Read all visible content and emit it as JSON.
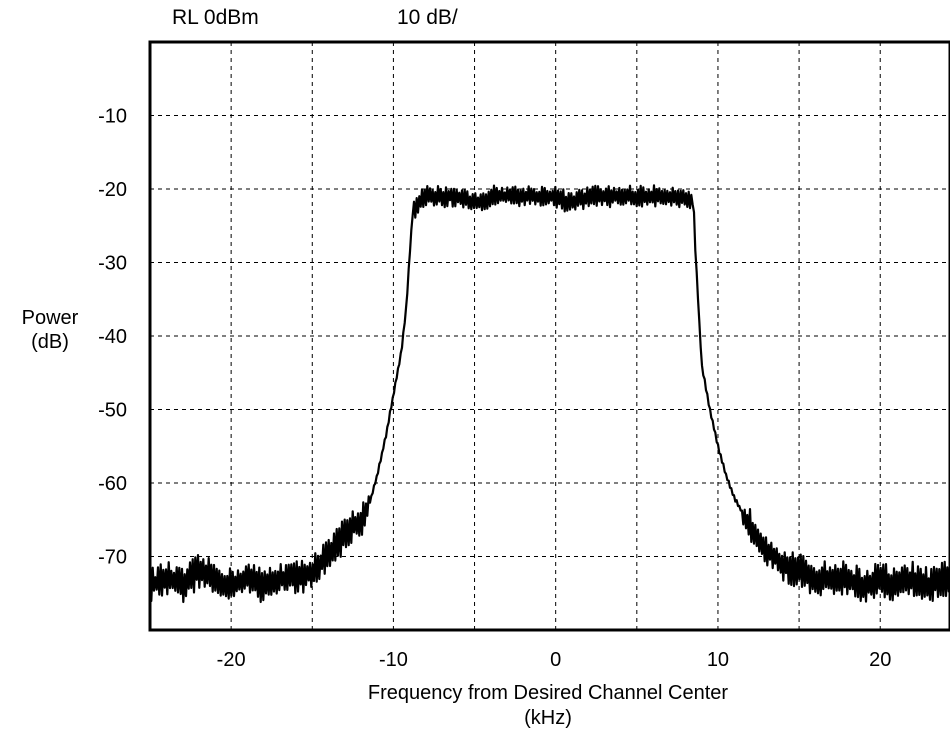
{
  "header": {
    "ref_level": "RL  0dBm",
    "scale": "10 dB/"
  },
  "chart_data": {
    "type": "line",
    "title": "",
    "xlabel_lines": [
      "Frequency from Desired Channel Center",
      "(kHz)"
    ],
    "ylabel_lines": [
      "Power",
      "(dB)"
    ],
    "xlim": [
      -25,
      24.3
    ],
    "ylim": [
      -80,
      0
    ],
    "grid": true,
    "x_ticks": [
      -20,
      -10,
      0,
      10,
      20
    ],
    "x_tick_labels": [
      "-20",
      "-10",
      "0",
      "10",
      "20"
    ],
    "x_grid_step": 5,
    "y_ticks": [
      -10,
      -20,
      -30,
      -40,
      -50,
      -60,
      -70
    ],
    "y_tick_labels": [
      "-10",
      "-20",
      "-30",
      "-40",
      "-50",
      "-60",
      "-70"
    ],
    "series": [
      {
        "color": "#000000",
        "x": [
          -25,
          -24,
          -23,
          -22,
          -21,
          -20,
          -19,
          -18,
          -17,
          -16,
          -15,
          -14,
          -13,
          -12,
          -11.5,
          -11,
          -10.5,
          -10,
          -9.5,
          -9.2,
          -9.0,
          -8.8,
          -8.5,
          -8,
          -7,
          -6,
          -5,
          -4,
          -3,
          -2,
          -1,
          0,
          1,
          2,
          3,
          4,
          5,
          6,
          7,
          8,
          8.3,
          8.5,
          8.6,
          8.8,
          9,
          9.5,
          10,
          10.5,
          11,
          11.5,
          12,
          13,
          14,
          15,
          16,
          17,
          18,
          19,
          20,
          21,
          22,
          23,
          24,
          24.3
        ],
        "y": [
          -74,
          -73,
          -74,
          -72,
          -73,
          -74,
          -73,
          -74,
          -73,
          -73,
          -72,
          -70,
          -67,
          -65,
          -63,
          -59,
          -54,
          -48,
          -42,
          -36,
          -29,
          -23,
          -22,
          -21,
          -21,
          -21,
          -22,
          -21,
          -21,
          -21,
          -21,
          -21,
          -22,
          -21,
          -21,
          -21,
          -21,
          -21,
          -21,
          -21,
          -22,
          -22,
          -28,
          -36,
          -44,
          -50,
          -55,
          -59,
          -62,
          -64,
          -66,
          -69,
          -71,
          -72,
          -73,
          -73,
          -73,
          -74,
          -73,
          -74,
          -73,
          -74,
          -73,
          -74
        ]
      }
    ]
  }
}
